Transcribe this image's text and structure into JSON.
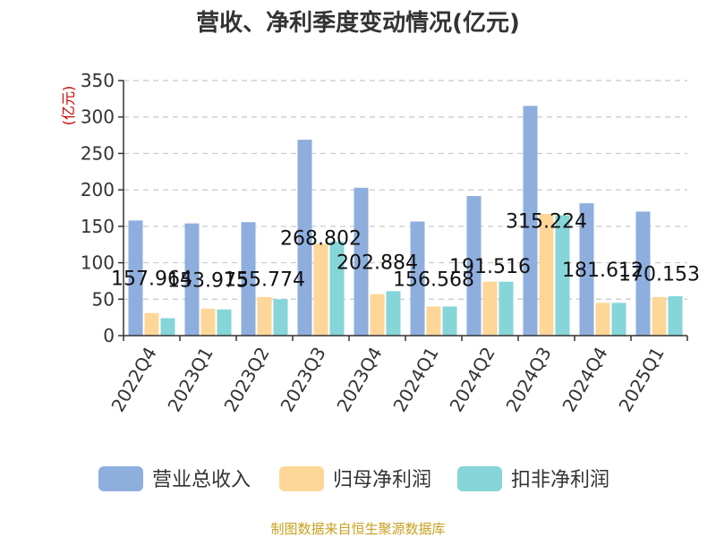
{
  "chart_data": {
    "type": "bar",
    "title": "营收、净利季度变动情况(亿元)",
    "unit_label": "(亿元)",
    "categories": [
      "2022Q4",
      "2023Q1",
      "2023Q2",
      "2023Q3",
      "2023Q4",
      "2024Q1",
      "2024Q2",
      "2024Q3",
      "2024Q4",
      "2025Q1"
    ],
    "series": [
      {
        "name": "营业总收入",
        "color": "#8eaede",
        "values": [
          157.964,
          153.975,
          155.774,
          268.802,
          202.884,
          156.568,
          191.516,
          315.224,
          181.612,
          170.153
        ],
        "labels": [
          "157.964",
          "153.975",
          "155.774",
          "268.802",
          "202.884",
          "156.568",
          "191.516",
          "315.224",
          "181.612",
          "170.153"
        ]
      },
      {
        "name": "归母净利润",
        "color": "#fdd698",
        "values": [
          31,
          37,
          53,
          126,
          57,
          40,
          74,
          167,
          45,
          53
        ]
      },
      {
        "name": "扣非净利润",
        "color": "#86d5d8",
        "values": [
          24,
          36,
          50,
          129,
          61,
          40,
          74,
          165,
          45,
          54
        ]
      }
    ],
    "ylim": [
      0,
      350
    ],
    "yticks": [
      0,
      50,
      100,
      150,
      200,
      250,
      300,
      350
    ],
    "grid": true,
    "legend_position": "bottom",
    "source": "制图数据来自恒生聚源数据库"
  }
}
